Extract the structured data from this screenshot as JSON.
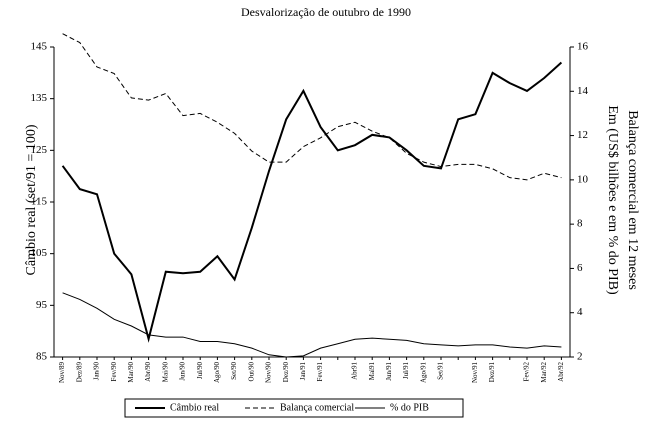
{
  "chart_data": {
    "type": "line",
    "title": "Desvalorização de outubro de 1990",
    "ylabel": "Câmbio real (set/91 = 100)",
    "y2label": [
      "Balança comercial em 12 meses",
      "Em (US$ bilhões e em % do PIB)"
    ],
    "categories": [
      "Nov/89",
      "Dez/89",
      "Jan/90",
      "Fev/90",
      "Mar/90",
      "Abr/90",
      "Mai/90",
      "Jun/90",
      "Jul/90",
      "Ago/90",
      "Set/90",
      "Out/90",
      "Nov/90",
      "Dez/90",
      "Jan/91",
      "Fev/91",
      null,
      "Abr91",
      "Mai91",
      "Jun/91",
      "Jul/91",
      "Ago/91",
      "Set/91",
      null,
      "Nov/91",
      "Dez/91",
      null,
      "Fev/92",
      "Mar/92",
      "Abr/92"
    ],
    "ylim": [
      85,
      145
    ],
    "yticks": [
      85,
      95,
      105,
      115,
      125,
      135,
      145
    ],
    "y2lim": [
      2,
      16
    ],
    "y2ticks": [
      2,
      4,
      6,
      8,
      10,
      12,
      14,
      16
    ],
    "series": [
      {
        "name": "Câmbio real",
        "color": "#000000",
        "dash": "solid",
        "width": 2,
        "values": [
          122,
          117.5,
          116.5,
          105,
          101,
          88.5,
          101.5,
          101.2,
          101.5,
          104.5,
          100,
          110,
          121,
          131,
          136.5,
          129.5,
          125,
          126,
          128,
          127.5,
          125,
          122,
          121.5,
          131,
          132,
          140,
          138,
          136.5,
          139,
          142
        ]
      },
      {
        "name": "Balança comercial",
        "color": "#000000",
        "dash": "dashed",
        "width": 1,
        "axis": "y2",
        "values": [
          16.6,
          16.2,
          15.1,
          14.8,
          13.7,
          13.6,
          13.9,
          12.9,
          13.0,
          12.6,
          12.1,
          11.3,
          10.8,
          10.8,
          11.5,
          11.9,
          12.4,
          12.6,
          12.2,
          11.9,
          11.2,
          10.8,
          10.6,
          10.7,
          10.7,
          10.5,
          10.1,
          10.0,
          10.3,
          10.1
        ]
      },
      {
        "name": "% do PIB",
        "color": "#000000",
        "dash": "solid",
        "width": 1,
        "axis": "y2",
        "values": [
          4.9,
          4.6,
          4.2,
          3.7,
          3.4,
          3.0,
          2.9,
          2.9,
          2.7,
          2.7,
          2.6,
          2.4,
          2.1,
          2.0,
          2.05,
          2.4,
          2.6,
          2.8,
          2.85,
          2.8,
          2.75,
          2.6,
          2.55,
          2.5,
          2.55,
          2.55,
          2.45,
          2.4,
          2.5,
          2.45
        ]
      }
    ]
  }
}
